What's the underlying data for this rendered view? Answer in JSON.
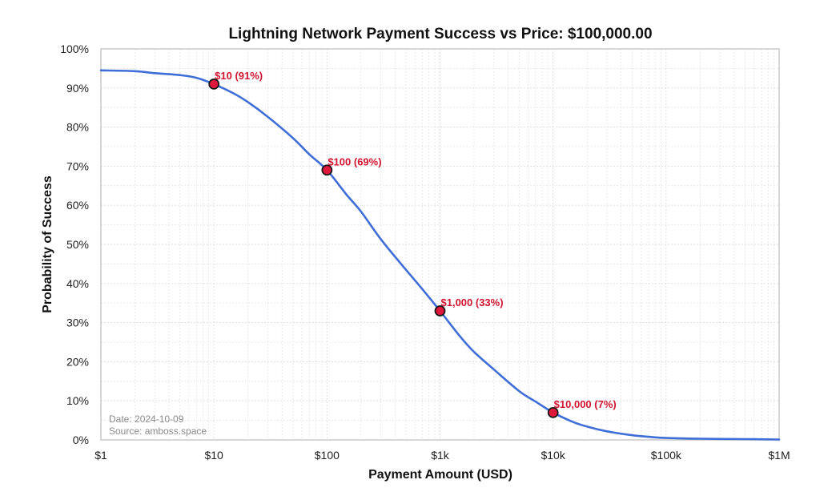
{
  "chart_data": {
    "type": "line",
    "title": "Lightning Network Payment Success vs Price: $100,000.00",
    "xlabel": "Payment Amount (USD)",
    "ylabel": "Probability of Success",
    "x_scale": "log",
    "xlim": [
      1,
      1000000
    ],
    "ylim": [
      0,
      100
    ],
    "x_ticks": [
      {
        "value": 1,
        "label": "$1"
      },
      {
        "value": 10,
        "label": "$10"
      },
      {
        "value": 100,
        "label": "$100"
      },
      {
        "value": 1000,
        "label": "$1k"
      },
      {
        "value": 10000,
        "label": "$10k"
      },
      {
        "value": 100000,
        "label": "$100k"
      },
      {
        "value": 1000000,
        "label": "$1M"
      }
    ],
    "y_ticks": [
      {
        "value": 0,
        "label": "0%"
      },
      {
        "value": 10,
        "label": "10%"
      },
      {
        "value": 20,
        "label": "20%"
      },
      {
        "value": 30,
        "label": "30%"
      },
      {
        "value": 40,
        "label": "40%"
      },
      {
        "value": 50,
        "label": "50%"
      },
      {
        "value": 60,
        "label": "60%"
      },
      {
        "value": 70,
        "label": "70%"
      },
      {
        "value": 80,
        "label": "80%"
      },
      {
        "value": 90,
        "label": "90%"
      },
      {
        "value": 100,
        "label": "100%"
      }
    ],
    "grid": true,
    "series": [
      {
        "x": [
          1,
          2,
          3,
          5,
          7,
          10,
          15,
          20,
          30,
          50,
          70,
          100,
          150,
          200,
          300,
          500,
          700,
          1000,
          1500,
          2000,
          3000,
          5000,
          7000,
          10000,
          15000,
          20000,
          30000,
          50000,
          70000,
          100000,
          200000,
          500000,
          1000000
        ],
        "y": [
          94.5,
          94.3,
          93.8,
          93.3,
          92.6,
          91,
          88.6,
          86.4,
          82.6,
          77.2,
          73,
          69,
          62.6,
          58.4,
          51.3,
          43.5,
          38.5,
          33,
          26.5,
          22.5,
          18,
          12.5,
          9.8,
          7,
          4.6,
          3.4,
          2.2,
          1.2,
          0.8,
          0.5,
          0.3,
          0.2,
          0.1
        ]
      }
    ],
    "highlight_points": [
      {
        "x": 10,
        "y": 91,
        "label": "$10 (91%)"
      },
      {
        "x": 100,
        "y": 69,
        "label": "$100 (69%)"
      },
      {
        "x": 1000,
        "y": 33,
        "label": "$1,000 (33%)"
      },
      {
        "x": 10000,
        "y": 7,
        "label": "$10,000 (7%)"
      }
    ],
    "annotations": [
      "Date: 2024-10-09",
      "Source: amboss.space"
    ]
  },
  "colors": {
    "line": "#3f6ed8",
    "marker_fill": "#e0183c",
    "marker_stroke": "#1a1a1a",
    "point_label": "#d0142f",
    "grid": "#dcdcdc",
    "frame": "#c8c8c8"
  }
}
